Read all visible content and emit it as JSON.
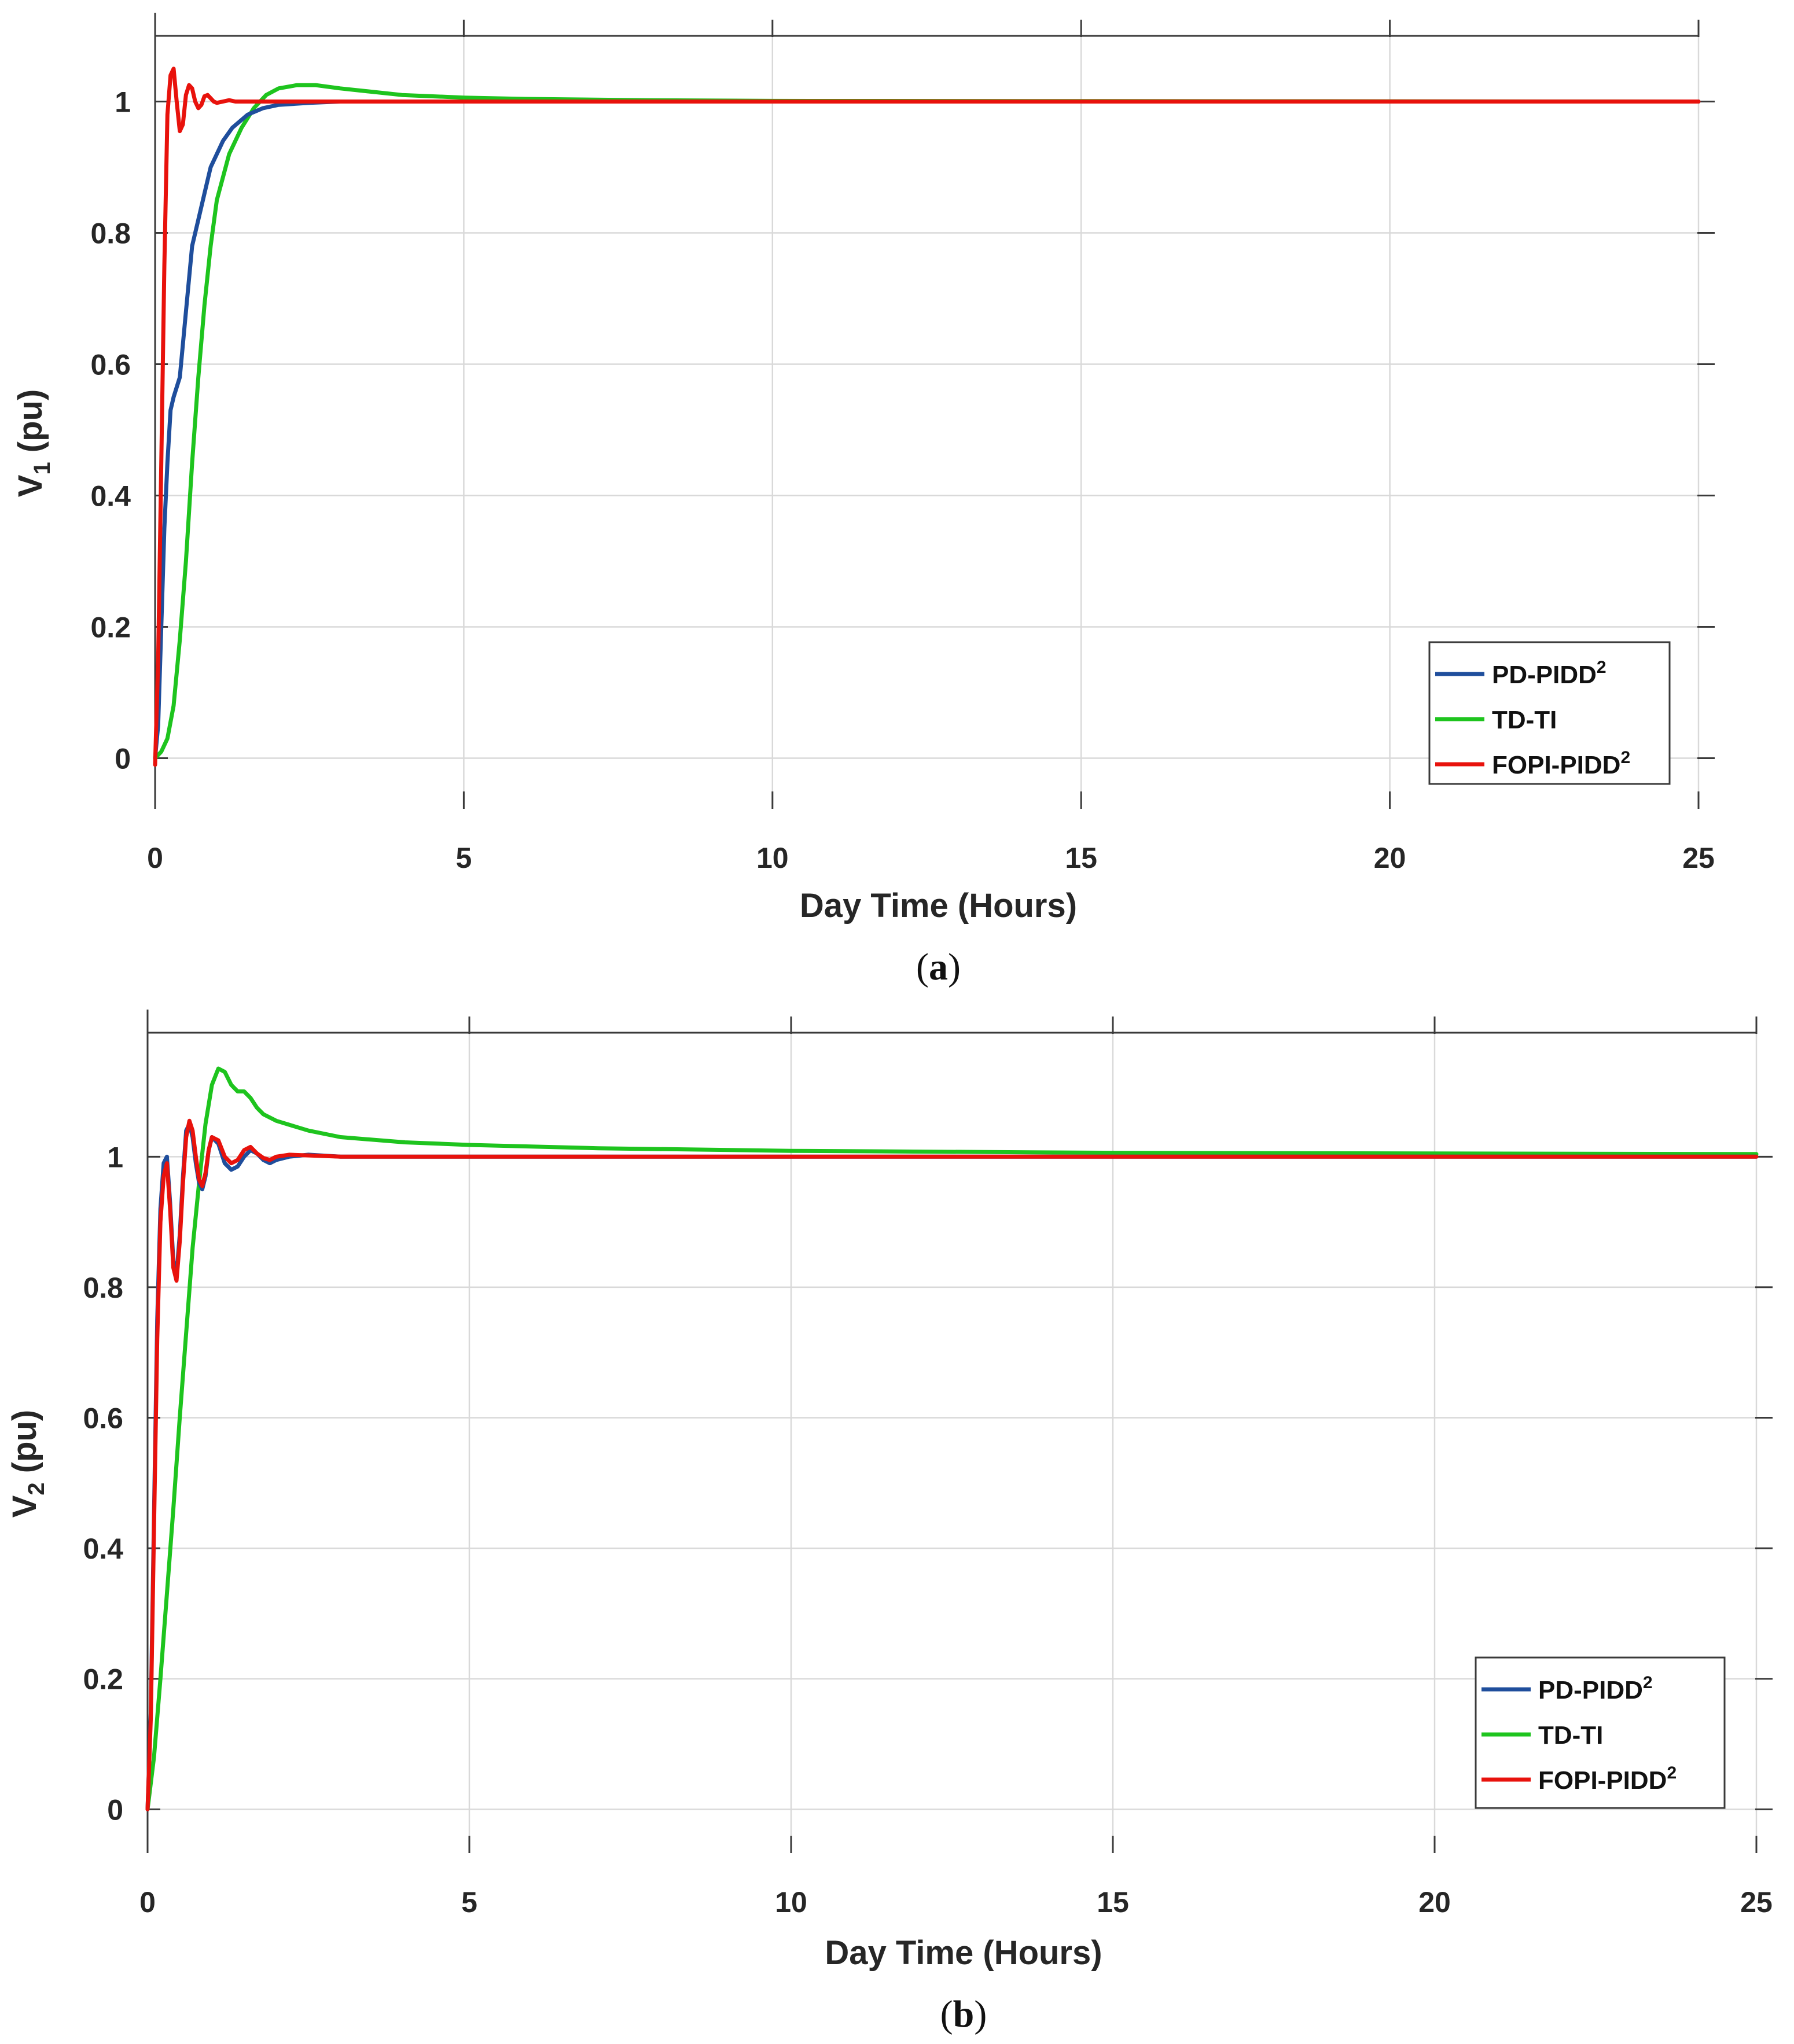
{
  "chart_data": [
    {
      "type": "line",
      "panel": "a",
      "caption_open": "(",
      "caption_letter": "a",
      "caption_close": ")",
      "xlabel": "Day Time (Hours)",
      "ylabel_main": "V",
      "ylabel_sub": "1",
      "ylabel_unit": " (pu)",
      "xlim": [
        0,
        25
      ],
      "ylim": [
        -0.07,
        1.1
      ],
      "xticks": [
        0,
        5,
        10,
        15,
        20,
        25
      ],
      "xtick_labels": [
        "0",
        "5",
        "10",
        "15",
        "20",
        "25"
      ],
      "yticks": [
        0,
        0.2,
        0.4,
        0.6,
        0.8,
        1
      ],
      "ytick_labels": [
        "0",
        "0.2",
        "0.4",
        "0.6",
        "0.8",
        "1"
      ],
      "grid": true,
      "legend_position": "bottom-right",
      "series": [
        {
          "name": "PD-PIDD",
          "sup": "2",
          "color": "#1f4e9c",
          "x": [
            0,
            0.05,
            0.1,
            0.15,
            0.2,
            0.25,
            0.3,
            0.4,
            0.5,
            0.6,
            0.7,
            0.8,
            0.9,
            1.0,
            1.1,
            1.25,
            1.5,
            1.75,
            2.0,
            2.5,
            3.0,
            4.0,
            25
          ],
          "y": [
            0,
            0.05,
            0.2,
            0.35,
            0.45,
            0.53,
            0.55,
            0.58,
            0.68,
            0.78,
            0.82,
            0.86,
            0.9,
            0.92,
            0.94,
            0.96,
            0.98,
            0.99,
            0.995,
            0.998,
            1.0,
            1.0,
            1.0
          ]
        },
        {
          "name": "TD-TI",
          "sup": "",
          "color": "#1ec41e",
          "x": [
            0,
            0.1,
            0.2,
            0.3,
            0.4,
            0.5,
            0.6,
            0.7,
            0.8,
            0.9,
            1.0,
            1.2,
            1.4,
            1.6,
            1.8,
            2.0,
            2.3,
            2.6,
            3.0,
            3.5,
            4.0,
            5.0,
            6.0,
            8.0,
            10.0,
            25
          ],
          "y": [
            0,
            0.01,
            0.03,
            0.08,
            0.18,
            0.3,
            0.45,
            0.58,
            0.69,
            0.78,
            0.85,
            0.92,
            0.96,
            0.99,
            1.01,
            1.02,
            1.025,
            1.025,
            1.02,
            1.015,
            1.01,
            1.006,
            1.004,
            1.002,
            1.001,
            1.0
          ]
        },
        {
          "name": "FOPI-PIDD",
          "sup": "2",
          "color": "#e8120c",
          "x": [
            0,
            0.05,
            0.1,
            0.15,
            0.2,
            0.25,
            0.3,
            0.35,
            0.4,
            0.45,
            0.5,
            0.55,
            0.6,
            0.65,
            0.7,
            0.75,
            0.8,
            0.85,
            0.9,
            0.95,
            1.0,
            1.1,
            1.2,
            1.3,
            1.5,
            2.0,
            25
          ],
          "y": [
            -0.01,
            0.15,
            0.45,
            0.75,
            0.98,
            1.04,
            1.05,
            1.0,
            0.955,
            0.965,
            1.01,
            1.025,
            1.02,
            1.0,
            0.99,
            0.995,
            1.008,
            1.01,
            1.005,
            1.0,
            0.998,
            1.0,
            1.002,
            1.0,
            1.0,
            1.0,
            1.0
          ]
        }
      ]
    },
    {
      "type": "line",
      "panel": "b",
      "caption_open": "(",
      "caption_letter": "b",
      "caption_close": ")",
      "xlabel": "Day Time (Hours)",
      "ylabel_main": "V",
      "ylabel_sub": "2",
      "ylabel_unit": " (pu)",
      "xlim": [
        0,
        25
      ],
      "ylim": [
        -0.06,
        1.19
      ],
      "xticks": [
        0,
        5,
        10,
        15,
        20,
        25
      ],
      "xtick_labels": [
        "0",
        "5",
        "10",
        "15",
        "20",
        "25"
      ],
      "yticks": [
        0,
        0.2,
        0.4,
        0.6,
        0.8,
        1
      ],
      "ytick_labels": [
        "0",
        "0.2",
        "0.4",
        "0.6",
        "0.8",
        "1"
      ],
      "grid": true,
      "legend_position": "bottom-right",
      "series": [
        {
          "name": "PD-PIDD",
          "sup": "2",
          "color": "#1f4e9c",
          "x": [
            0,
            0.05,
            0.1,
            0.15,
            0.2,
            0.25,
            0.3,
            0.35,
            0.4,
            0.45,
            0.5,
            0.55,
            0.6,
            0.65,
            0.7,
            0.75,
            0.8,
            0.85,
            0.9,
            0.95,
            1.0,
            1.1,
            1.2,
            1.3,
            1.4,
            1.5,
            1.6,
            1.7,
            1.8,
            1.9,
            2.0,
            2.2,
            2.5,
            3.0,
            25
          ],
          "y": [
            0,
            0.15,
            0.45,
            0.75,
            0.92,
            0.99,
            1.0,
            0.93,
            0.84,
            0.82,
            0.88,
            0.97,
            1.04,
            1.05,
            1.03,
            0.99,
            0.96,
            0.95,
            0.97,
            1.01,
            1.03,
            1.02,
            0.99,
            0.98,
            0.985,
            1.0,
            1.01,
            1.005,
            0.995,
            0.99,
            0.995,
            1.0,
            1.003,
            1.0,
            1.0
          ]
        },
        {
          "name": "TD-TI",
          "sup": "",
          "color": "#1ec41e",
          "x": [
            0,
            0.1,
            0.2,
            0.3,
            0.4,
            0.5,
            0.6,
            0.7,
            0.8,
            0.9,
            1.0,
            1.1,
            1.2,
            1.3,
            1.4,
            1.5,
            1.6,
            1.7,
            1.8,
            2.0,
            2.5,
            3.0,
            4.0,
            5.0,
            7.0,
            10.0,
            15.0,
            25
          ],
          "y": [
            0,
            0.08,
            0.2,
            0.33,
            0.46,
            0.6,
            0.73,
            0.86,
            0.96,
            1.05,
            1.11,
            1.135,
            1.13,
            1.11,
            1.1,
            1.1,
            1.09,
            1.075,
            1.065,
            1.055,
            1.04,
            1.03,
            1.022,
            1.018,
            1.013,
            1.009,
            1.006,
            1.004
          ]
        },
        {
          "name": "FOPI-PIDD",
          "sup": "2",
          "color": "#e8120c",
          "x": [
            0,
            0.05,
            0.1,
            0.15,
            0.2,
            0.25,
            0.3,
            0.35,
            0.4,
            0.45,
            0.5,
            0.55,
            0.6,
            0.65,
            0.7,
            0.75,
            0.8,
            0.85,
            0.9,
            0.95,
            1.0,
            1.1,
            1.2,
            1.3,
            1.4,
            1.5,
            1.6,
            1.7,
            1.8,
            1.9,
            2.0,
            2.2,
            2.5,
            3.0,
            25
          ],
          "y": [
            0,
            0.14,
            0.43,
            0.72,
            0.9,
            0.97,
            0.99,
            0.92,
            0.83,
            0.81,
            0.87,
            0.96,
            1.03,
            1.055,
            1.04,
            1.0,
            0.965,
            0.955,
            0.975,
            1.01,
            1.03,
            1.025,
            1.0,
            0.99,
            0.995,
            1.01,
            1.015,
            1.005,
            0.998,
            0.995,
            1.0,
            1.003,
            1.002,
            1.0,
            1.0
          ]
        }
      ]
    }
  ]
}
